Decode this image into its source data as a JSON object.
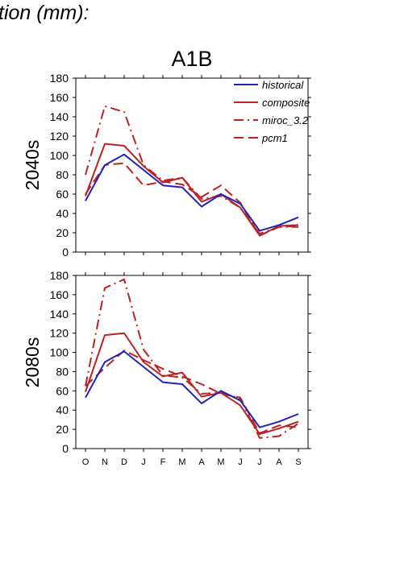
{
  "figure_title": "tion (mm):",
  "colors": {
    "historical": "#2222bb",
    "model": "#bb2222",
    "axis": "#000000"
  },
  "chart_data": [
    {
      "type": "line",
      "title": "A1B",
      "ylabel": "2040s",
      "xlabel": "",
      "categories": [
        "O",
        "N",
        "D",
        "J",
        "F",
        "M",
        "A",
        "M",
        "J",
        "J",
        "A",
        "S"
      ],
      "ylim": [
        0,
        180
      ],
      "yticks": [
        0,
        20,
        40,
        60,
        80,
        100,
        120,
        140,
        160,
        180
      ],
      "grid": false,
      "legend_position": "top-right",
      "series": [
        {
          "name": "historical",
          "style": "solid",
          "color": "#2222bb",
          "values": [
            53,
            90,
            101,
            85,
            69,
            67,
            47,
            60,
            50,
            22,
            28,
            36
          ]
        },
        {
          "name": "composite",
          "style": "solid",
          "color": "#bb2222",
          "values": [
            58,
            112,
            110,
            89,
            72,
            77,
            52,
            60,
            46,
            17,
            27,
            28
          ]
        },
        {
          "name": "miroc_3.2",
          "style": "dashdot",
          "color": "#bb2222",
          "values": [
            80,
            151,
            145,
            90,
            74,
            77,
            55,
            58,
            46,
            19,
            26,
            26
          ]
        },
        {
          "name": "pcm1",
          "style": "dash",
          "color": "#bb2222",
          "values": [
            60,
            90,
            92,
            69,
            73,
            70,
            57,
            69,
            51,
            17,
            26,
            27
          ]
        }
      ]
    },
    {
      "type": "line",
      "title": "",
      "ylabel": "2080s",
      "xlabel": "",
      "categories": [
        "O",
        "N",
        "D",
        "J",
        "F",
        "M",
        "A",
        "M",
        "J",
        "J",
        "A",
        "S"
      ],
      "ylim": [
        0,
        180
      ],
      "yticks": [
        0,
        20,
        40,
        60,
        80,
        100,
        120,
        140,
        160,
        180
      ],
      "grid": false,
      "series": [
        {
          "name": "historical",
          "style": "solid",
          "color": "#2222bb",
          "values": [
            53,
            90,
            101,
            85,
            69,
            67,
            47,
            60,
            50,
            22,
            28,
            36
          ]
        },
        {
          "name": "composite",
          "style": "solid",
          "color": "#bb2222",
          "values": [
            59,
            118,
            120,
            90,
            75,
            79,
            54,
            58,
            45,
            15,
            21,
            28
          ]
        },
        {
          "name": "miroc_3.2",
          "style": "dashdot",
          "color": "#bb2222",
          "values": [
            65,
            167,
            176,
            103,
            76,
            74,
            57,
            58,
            52,
            11,
            13,
            26
          ]
        },
        {
          "name": "pcm1",
          "style": "dash",
          "color": "#bb2222",
          "values": [
            65,
            84,
            102,
            92,
            83,
            75,
            67,
            57,
            53,
            16,
            24,
            22
          ]
        }
      ]
    }
  ]
}
